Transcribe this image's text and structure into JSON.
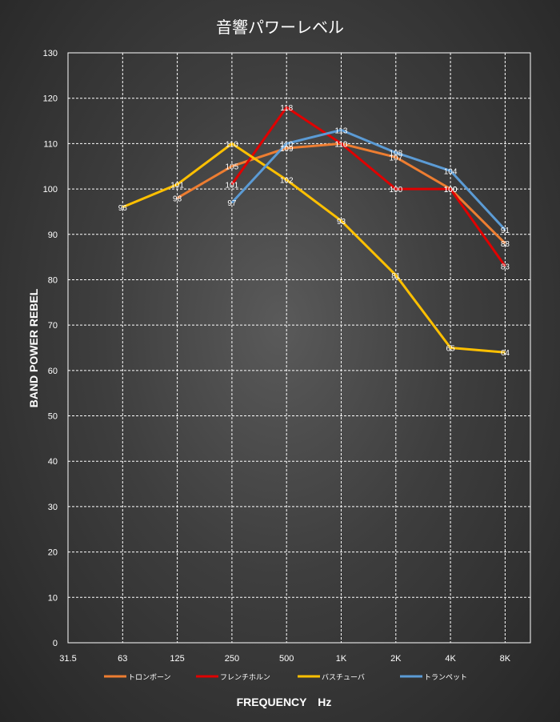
{
  "chart_data": {
    "type": "line",
    "title": "音響パワーレベル",
    "xlabel": "FREQUENCY　Hz",
    "ylabel": "BAND POWER REBEL",
    "categories": [
      "31.5",
      "63",
      "125",
      "250",
      "500",
      "1K",
      "2K",
      "4K",
      "8K"
    ],
    "ylim": [
      0,
      130
    ],
    "yticks": [
      0,
      10,
      20,
      30,
      40,
      50,
      60,
      70,
      80,
      90,
      100,
      110,
      120,
      130
    ],
    "grid": true,
    "legend_position": "bottom",
    "series": [
      {
        "name": "トロンボーン",
        "color": "#ed7d31",
        "values": [
          null,
          null,
          98,
          105,
          109,
          110,
          107,
          100,
          88
        ]
      },
      {
        "name": "フレンチホルン",
        "color": "#e00000",
        "values": [
          null,
          null,
          null,
          101,
          118,
          110,
          100,
          100,
          83
        ]
      },
      {
        "name": "バスチューバ",
        "color": "#ffc000",
        "values": [
          null,
          96,
          101,
          110,
          102,
          93,
          81,
          65,
          64
        ]
      },
      {
        "name": "トランペット",
        "color": "#5b9bd5",
        "values": [
          null,
          null,
          null,
          97,
          110,
          113,
          108,
          104,
          91
        ]
      }
    ]
  }
}
